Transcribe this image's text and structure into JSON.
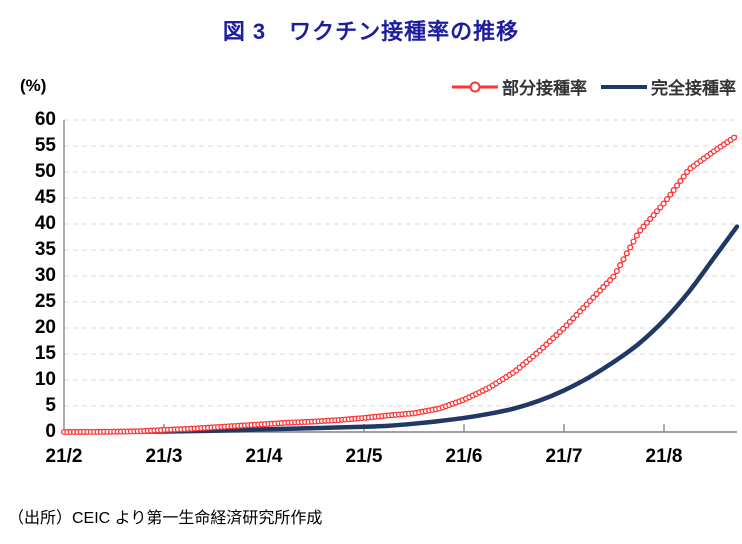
{
  "figure": {
    "title": "図 3　ワクチン接種率の推移",
    "unit_label": "(%)",
    "source": "（出所）CEIC より第一生命経済研究所作成"
  },
  "colors": {
    "title_text": "#1d1da0",
    "partial_series": "#ff3333",
    "full_series": "#1f3864",
    "axis_line": "#808080",
    "gridline": "#d9d9d9",
    "tick_text": "#000000",
    "legend_text": "#333333"
  },
  "chart_data": {
    "type": "line",
    "title": "図 3　ワクチン接種率の推移",
    "ylabel": "(%)",
    "grid": "horizontal-dashed",
    "legend_position": "top-right",
    "x_axis": {
      "tick_labels": [
        "21/2",
        "21/3",
        "21/4",
        "21/5",
        "21/6",
        "21/7",
        "21/8"
      ],
      "tick_positions_months": [
        0,
        1,
        2,
        3,
        4,
        5,
        6
      ],
      "range_months": [
        0,
        6.73
      ]
    },
    "y_axis": {
      "ticks": [
        0,
        5,
        10,
        15,
        20,
        25,
        30,
        35,
        40,
        45,
        50,
        55,
        60
      ],
      "range": [
        0,
        60
      ],
      "unit": "%"
    },
    "series": [
      {
        "name": "部分接種率",
        "color": "#ff3333",
        "style": "line-with-open-circle-markers",
        "points_month_percent": [
          [
            0,
            0.0
          ],
          [
            0.25,
            0.02
          ],
          [
            0.5,
            0.05
          ],
          [
            0.75,
            0.15
          ],
          [
            1,
            0.4
          ],
          [
            1.25,
            0.6
          ],
          [
            1.5,
            0.9
          ],
          [
            1.75,
            1.2
          ],
          [
            2,
            1.5
          ],
          [
            2.25,
            1.8
          ],
          [
            2.5,
            2.0
          ],
          [
            2.75,
            2.3
          ],
          [
            3,
            2.7
          ],
          [
            3.25,
            3.2
          ],
          [
            3.5,
            3.6
          ],
          [
            3.75,
            4.5
          ],
          [
            4,
            6.2
          ],
          [
            4.25,
            8.5
          ],
          [
            4.5,
            11.5
          ],
          [
            4.75,
            15.5
          ],
          [
            5,
            20.0
          ],
          [
            5.25,
            25.0
          ],
          [
            5.5,
            30.0
          ],
          [
            5.75,
            38.5
          ],
          [
            6,
            44.0
          ],
          [
            6.25,
            50.5
          ],
          [
            6.5,
            54.0
          ],
          [
            6.73,
            57.0
          ]
        ]
      },
      {
        "name": "完全接種率",
        "color": "#1f3864",
        "style": "solid-line",
        "points_month_percent": [
          [
            0,
            0.0
          ],
          [
            0.5,
            0.02
          ],
          [
            1,
            0.1
          ],
          [
            1.5,
            0.25
          ],
          [
            2,
            0.5
          ],
          [
            2.5,
            0.75
          ],
          [
            3,
            1.0
          ],
          [
            3.25,
            1.2
          ],
          [
            3.5,
            1.6
          ],
          [
            3.75,
            2.1
          ],
          [
            4,
            2.7
          ],
          [
            4.25,
            3.5
          ],
          [
            4.5,
            4.5
          ],
          [
            4.75,
            6.0
          ],
          [
            5,
            8.0
          ],
          [
            5.25,
            10.5
          ],
          [
            5.5,
            13.5
          ],
          [
            5.75,
            17.0
          ],
          [
            6,
            21.5
          ],
          [
            6.25,
            27.0
          ],
          [
            6.5,
            33.5
          ],
          [
            6.73,
            39.5
          ]
        ]
      }
    ]
  }
}
